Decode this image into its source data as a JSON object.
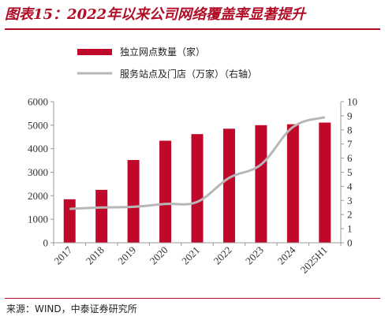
{
  "figure_title": "图表15：2022年以来公司网络覆盖率显著提升",
  "source_text": "来源：WIND，中泰证券研究所",
  "colors": {
    "bar": "#c0082b",
    "line": "#b7b7b7",
    "title": "#b00d27",
    "axis": "#9a9a9a"
  },
  "chart_data": {
    "type": "bar",
    "categories": [
      "2017",
      "2018",
      "2019",
      "2020",
      "2021",
      "2022",
      "2023",
      "2024",
      "2025H1"
    ],
    "series": [
      {
        "name": "独立网点数量（家）",
        "type": "bar",
        "axis": "left",
        "values": [
          1850,
          2250,
          3520,
          4340,
          4620,
          4850,
          5000,
          5040,
          5110
        ]
      },
      {
        "name": "服务站点及门店（万家）（右轴）",
        "type": "line",
        "axis": "right",
        "values": [
          2.4,
          2.5,
          2.55,
          2.75,
          2.9,
          4.6,
          5.55,
          8.2,
          8.9
        ]
      }
    ],
    "y_left": {
      "min": 0,
      "max": 6000,
      "ticks": [
        0,
        1000,
        2000,
        3000,
        4000,
        5000,
        6000
      ]
    },
    "y_right": {
      "min": 0,
      "max": 10,
      "ticks": [
        0,
        1,
        2,
        3,
        4,
        5,
        6,
        7,
        8,
        9,
        10
      ]
    },
    "legend_position": "top",
    "grid": false
  }
}
